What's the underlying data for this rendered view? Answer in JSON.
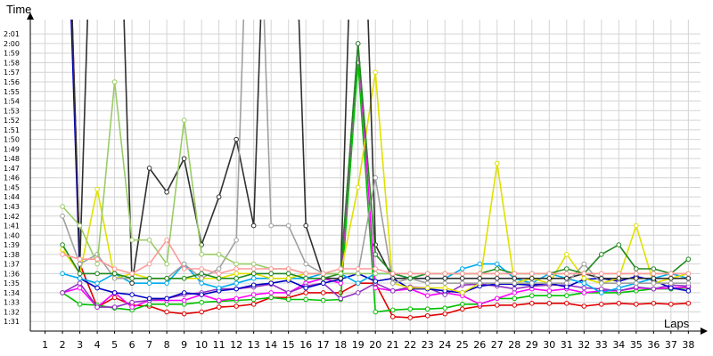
{
  "chart_data": {
    "type": "line",
    "title": "",
    "ylabel": "Time",
    "xlabel": "Laps",
    "x": [
      1,
      2,
      3,
      4,
      5,
      6,
      7,
      8,
      9,
      10,
      11,
      12,
      13,
      14,
      15,
      16,
      17,
      18,
      19,
      20,
      21,
      22,
      23,
      24,
      25,
      26,
      27,
      28,
      29,
      30,
      31,
      32,
      33,
      34,
      35,
      36,
      37,
      38
    ],
    "y_ticks": [
      "1:31",
      "1:32",
      "1:33",
      "1:34",
      "1:35",
      "1:36",
      "1:37",
      "1:38",
      "1:39",
      "1:40",
      "1:41",
      "1:42",
      "1:43",
      "1:44",
      "1:45",
      "1:46",
      "1:47",
      "1:48",
      "1:49",
      "1:50",
      "1:51",
      "1:52",
      "1:53",
      "1:54",
      "1:55",
      "1:56",
      "1:57",
      "1:58",
      "1:59",
      "2:00",
      "2:01"
    ],
    "ylim_seconds": [
      90,
      122.5
    ],
    "grid": true,
    "series": [
      {
        "color": "#e00000",
        "values": [
          null,
          155,
          97,
          92.5,
          93.5,
          92.7,
          92.6,
          92,
          91.8,
          92,
          92.5,
          92.6,
          92.8,
          93.5,
          93.5,
          94,
          94,
          94,
          95,
          95,
          91.5,
          91.4,
          91.6,
          91.8,
          92.3,
          92.6,
          92.7,
          92.7,
          92.9,
          92.9,
          92.9,
          92.6,
          92.8,
          92.9,
          92.8,
          92.9,
          92.8,
          92.9
        ]
      },
      {
        "color": "#00c000",
        "values": [
          null,
          94,
          92.8,
          92.7,
          92.4,
          92.2,
          92.8,
          92.8,
          92.8,
          93,
          93.1,
          93.2,
          93.3,
          93.5,
          93.3,
          93.3,
          93.2,
          93.3,
          118,
          92,
          92.2,
          92.3,
          92.3,
          92.4,
          92.8,
          92.8,
          93.4,
          93.4,
          93.7,
          93.7,
          93.7,
          94,
          94,
          94,
          94.2,
          94.4,
          94.4,
          94.5
        ]
      },
      {
        "color": "#ff00ff",
        "values": [
          null,
          94,
          94.5,
          92.5,
          94,
          92.5,
          93.2,
          93.2,
          93.2,
          93.8,
          93.2,
          93.4,
          93.8,
          94,
          94,
          95,
          95.5,
          95,
          120,
          94.5,
          94.2,
          94.4,
          93.7,
          94,
          93.7,
          92.8,
          93.4,
          94,
          94.4,
          94.2,
          94.4,
          94,
          94.2,
          94.2,
          94.5,
          94.4,
          94.5,
          94.6
        ]
      },
      {
        "color": "#9030c0",
        "values": [
          null,
          94,
          95,
          92.5,
          92.5,
          93,
          93.2,
          93.4,
          93.8,
          94,
          94.4,
          94.4,
          94.6,
          94.9,
          94,
          94.7,
          95,
          93.4,
          94,
          95,
          94.2,
          94.6,
          94.5,
          93.8,
          94.8,
          94.9,
          94.7,
          94.4,
          94.7,
          94.8,
          94.8,
          94.5,
          94.4,
          94.2,
          94.6,
          94.4,
          94.8,
          94.7
        ]
      },
      {
        "color": "#0000c0",
        "values": [
          null,
          150,
          95.5,
          94.5,
          94,
          93.8,
          93.4,
          93.4,
          94,
          93.8,
          94.2,
          94.4,
          94.8,
          95,
          95.3,
          94.5,
          95,
          95.4,
          96,
          95.2,
          95.5,
          94.4,
          94.4,
          94.2,
          94,
          94.7,
          94.9,
          94.9,
          94.8,
          95,
          94.6,
          95.4,
          95.5,
          95.2,
          95.7,
          95.3,
          94.5,
          94.2
        ]
      },
      {
        "color": "#00aaee",
        "values": [
          null,
          96,
          95.5,
          95,
          96,
          95,
          95,
          95,
          97,
          95,
          94.5,
          95,
          95.5,
          95.5,
          95.5,
          95.5,
          96,
          96,
          95,
          96,
          96,
          95.5,
          95.5,
          95.5,
          96.5,
          97,
          97,
          95.5,
          95,
          96,
          95.5,
          95,
          94,
          94.5,
          95,
          95.5,
          96,
          95.5
        ]
      },
      {
        "color": "#e0e000",
        "values": [
          null,
          98.5,
          96,
          104.8,
          95.5,
          96,
          95.5,
          95.5,
          95.5,
          95.5,
          95.5,
          96,
          96,
          95.5,
          95.5,
          96,
          96,
          96,
          105,
          117,
          95,
          94.5,
          94.5,
          94.5,
          94,
          95,
          107.5,
          95,
          95.5,
          95,
          98,
          95.5,
          95,
          95.5,
          101,
          95,
          95.5,
          96
        ]
      },
      {
        "color": "#303030",
        "values": [
          null,
          155,
          97,
          155,
          155,
          95,
          107,
          104.5,
          108,
          99,
          104,
          110,
          101,
          155,
          155,
          101,
          95.5,
          95.5,
          155,
          99,
          95.5,
          95.5,
          95.5,
          95.5,
          95.5,
          95.5,
          95.5,
          95.5,
          95.5,
          95.5,
          95.5,
          96,
          95.5,
          95.5,
          95.5,
          95.5,
          95.5,
          95.5
        ]
      },
      {
        "color": "#a0a0a0",
        "values": [
          null,
          102,
          97,
          98,
          95.5,
          95.5,
          95.5,
          95.5,
          97,
          95.5,
          96.5,
          99.5,
          155,
          101,
          101,
          97,
          96,
          96,
          96,
          106,
          95,
          95.5,
          95,
          95,
          95,
          95,
          95,
          95,
          95,
          95,
          95,
          97,
          95,
          95,
          95,
          95,
          95,
          95
        ]
      },
      {
        "color": "#228822",
        "values": [
          null,
          99,
          96,
          96,
          96,
          95.5,
          95.5,
          95.5,
          95.5,
          96,
          95.5,
          95.5,
          96,
          96,
          96,
          95.5,
          95.5,
          96,
          120,
          98,
          96,
          95.5,
          96,
          96,
          96,
          96,
          96.5,
          96,
          96,
          96,
          96.5,
          96,
          98,
          99,
          96.5,
          96.5,
          96,
          97.5
        ]
      },
      {
        "color": "#99cc66",
        "values": [
          null,
          103,
          101,
          97,
          116,
          99.5,
          99.5,
          97,
          112,
          98,
          98,
          97,
          97,
          96.5,
          96.5,
          96,
          96,
          96,
          96,
          96,
          96,
          96,
          96,
          96,
          96,
          96,
          96,
          96,
          96,
          96,
          96,
          96,
          96,
          96,
          96,
          96,
          96,
          96
        ]
      },
      {
        "color": "#ff9999",
        "values": [
          null,
          98,
          97.5,
          97.5,
          96.5,
          96,
          97,
          99.5,
          96.5,
          96.5,
          96,
          96.5,
          96.5,
          96.5,
          96.5,
          96,
          96,
          96.5,
          96.5,
          96.5,
          96,
          96,
          96,
          96,
          96,
          96,
          96,
          96,
          96,
          96,
          96,
          96,
          96,
          96,
          96,
          96,
          96,
          96
        ]
      }
    ]
  }
}
